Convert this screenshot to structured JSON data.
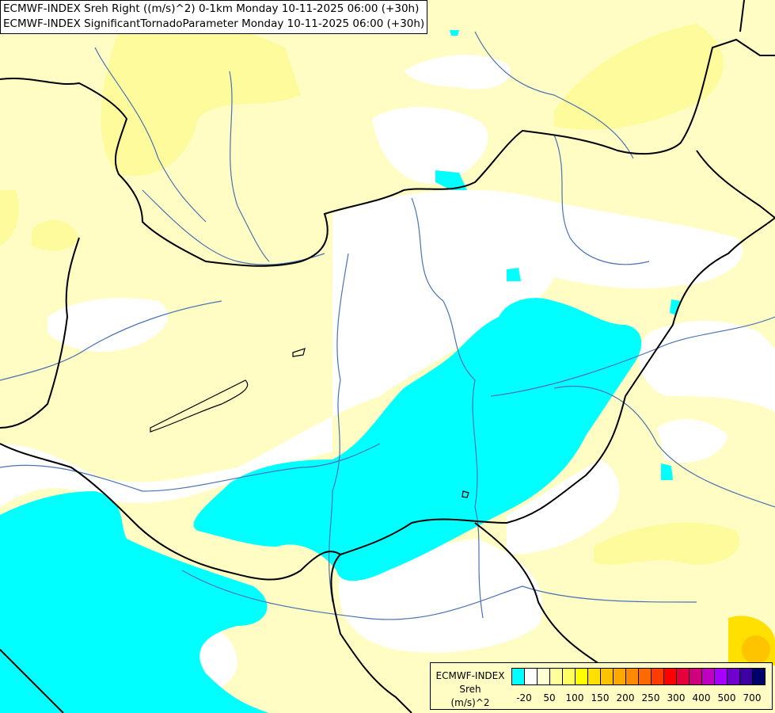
{
  "header": {
    "line1": "ECMWF-INDEX Sreh Right ((m/s)^2) 0-1km Monday 10-11-2025 06:00 (+30h)",
    "line2": "ECMWF-INDEX SignificantTornadoParameter Monday 10-11-2025 06:00 (+30h)"
  },
  "legend": {
    "title": "ECMWF-INDEX",
    "variable": "Sreh",
    "unit": "(m/s)^2",
    "colors": [
      "#00ffff",
      "#ffffff",
      "#ffffd4",
      "#ffff9c",
      "#ffff60",
      "#ffff00",
      "#ffe000",
      "#ffc400",
      "#ffa800",
      "#ff8a00",
      "#ff6a00",
      "#ff3c00",
      "#ff0000",
      "#e8003c",
      "#d0007c",
      "#c000c0",
      "#a800ff",
      "#7000d0",
      "#3c00a0",
      "#00006c"
    ],
    "labels": [
      "-20",
      "50",
      "100",
      "150",
      "200",
      "250",
      "300",
      "400",
      "500",
      "700"
    ]
  },
  "map_colors": {
    "background": "#fffdc4",
    "light_yellow": "#fdfb9c",
    "white": "#ffffff",
    "cyan": "#00ffff",
    "rivers": "#4a72b4",
    "borders": "#000000"
  }
}
